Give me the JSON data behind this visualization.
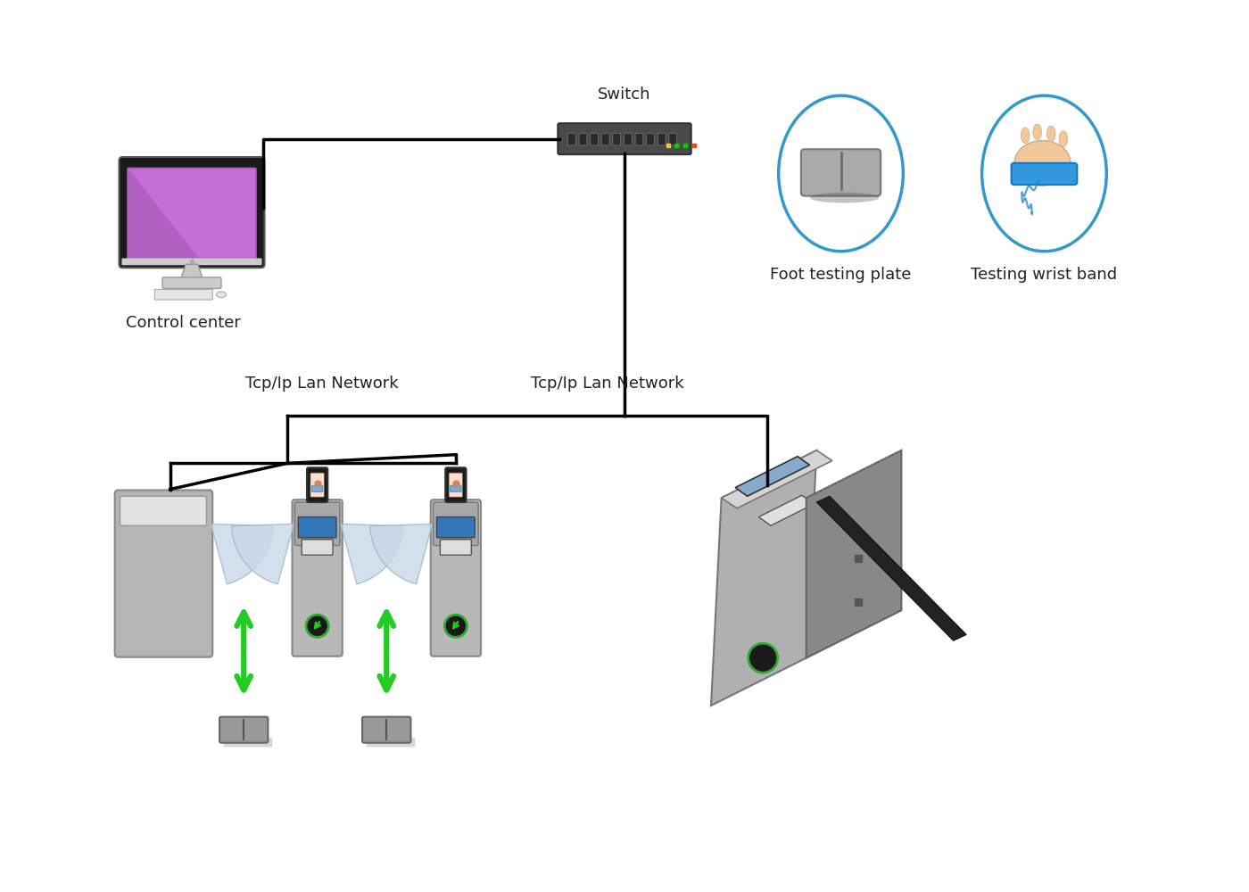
{
  "labels": {
    "control_center": "Control center",
    "switch": "Switch",
    "foot_plate": "Foot testing plate",
    "wrist_band": "Testing wrist band",
    "tcp_lan_left": "Tcp/Ip Lan Network",
    "tcp_lan_right": "Tcp/Ip Lan Network"
  },
  "colors": {
    "background": "#ffffff",
    "line": "#000000",
    "gate_body": "#b8b8b8",
    "gate_dark": "#909090",
    "gate_blade": "#c8d8e8",
    "green_arrow": "#22cc22",
    "circle_stroke": "#3399cc",
    "text_color": "#222222"
  },
  "font_sizes": {
    "label": 13
  }
}
